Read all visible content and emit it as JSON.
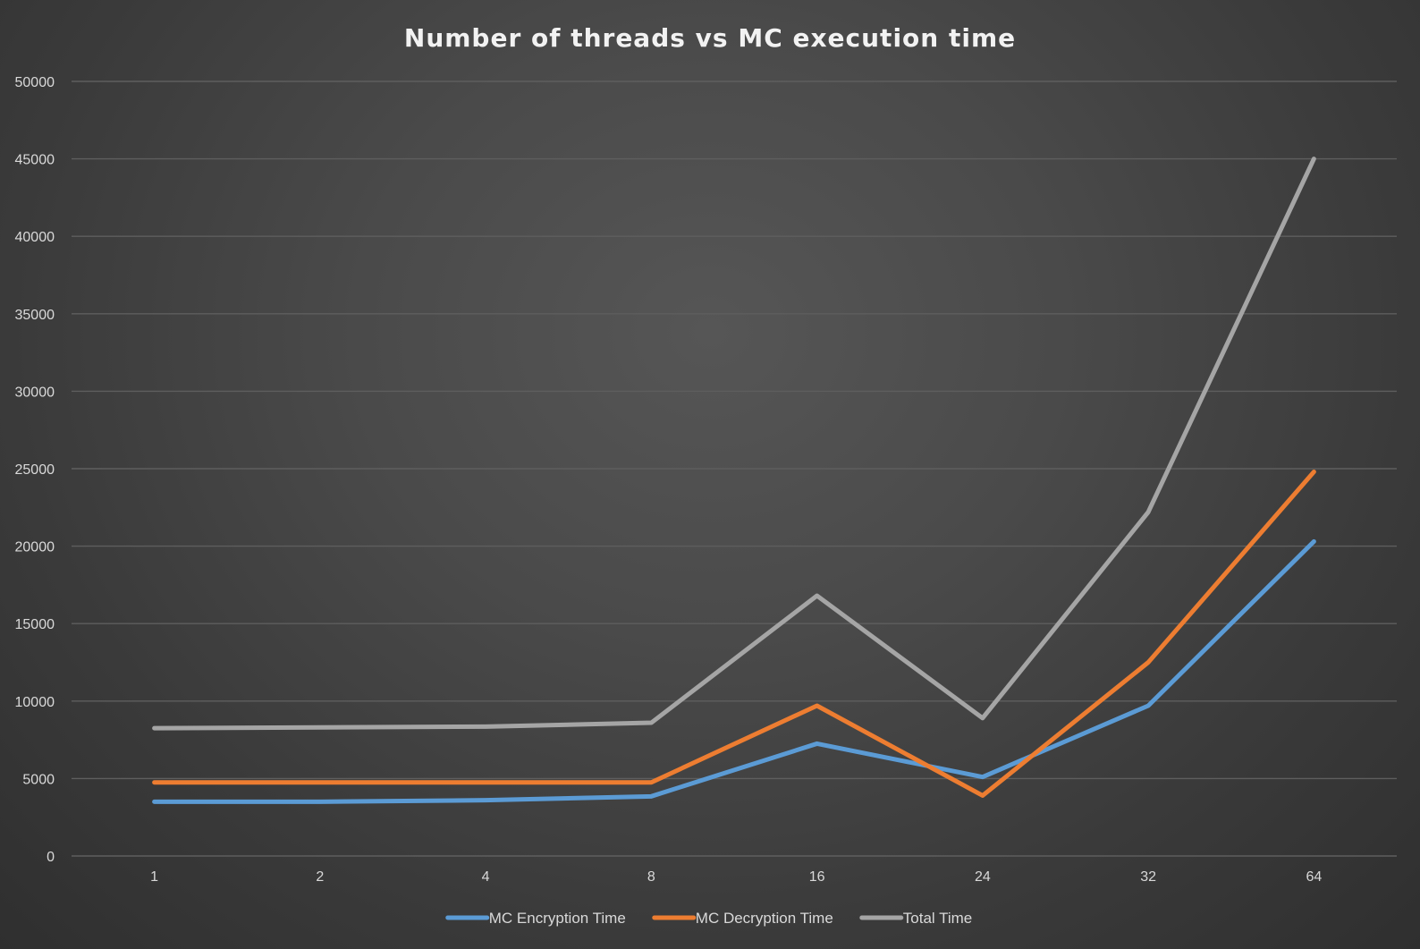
{
  "chart_data": {
    "type": "line",
    "title": "Number of threads vs MC execution time",
    "xlabel": "",
    "ylabel": "",
    "categories": [
      "1",
      "2",
      "4",
      "8",
      "16",
      "24",
      "32",
      "64"
    ],
    "y_ticks": [
      "0",
      "5000",
      "10000",
      "15000",
      "20000",
      "25000",
      "30000",
      "35000",
      "40000",
      "45000",
      "50000"
    ],
    "ylim": [
      0,
      50000
    ],
    "grid": true,
    "legend_position": "bottom",
    "series": [
      {
        "name": "MC Encryption Time",
        "color": "#5b9bd5",
        "values": [
          3500,
          3500,
          3600,
          3850,
          7250,
          5100,
          9700,
          20300
        ]
      },
      {
        "name": "MC Decryption Time",
        "color": "#ed7d31",
        "values": [
          4750,
          4750,
          4750,
          4750,
          9700,
          3900,
          12500,
          24800
        ]
      },
      {
        "name": "Total Time",
        "color": "#a5a5a5",
        "values": [
          8250,
          8300,
          8350,
          8600,
          16800,
          8900,
          22200,
          45000
        ]
      }
    ]
  }
}
